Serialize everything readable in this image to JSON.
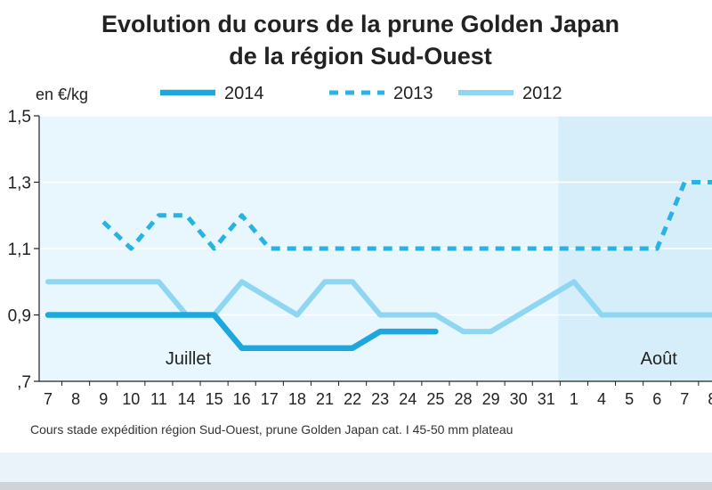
{
  "chart_data": {
    "type": "line",
    "title": "Evolution du cours de la prune Golden Japan",
    "subtitle": "de la région Sud-Ouest",
    "ylabel": "en €/kg",
    "caption": "Cours stade expédition région Sud-Ouest, prune Golden Japan cat. I 45-50 mm plateau",
    "ylim": [
      0.7,
      1.5
    ],
    "y_ticks": [
      ",7",
      "0,9",
      "1,1",
      "1,3",
      "1,5"
    ],
    "grid": "horizontal",
    "legend_position": "top",
    "month_labels": [
      {
        "label": "Juillet",
        "at_index": 5
      },
      {
        "label": "Août",
        "at_index": 22
      }
    ],
    "x": [
      "7",
      "8",
      "9",
      "10",
      "11",
      "14",
      "15",
      "16",
      "17",
      "18",
      "21",
      "22",
      "23",
      "24",
      "25",
      "28",
      "29",
      "30",
      "31",
      "1",
      "4",
      "5",
      "6",
      "7",
      "8"
    ],
    "series": [
      {
        "name": "2014",
        "style": "solid-thick",
        "color": "#1da7dc",
        "values": [
          0.9,
          0.9,
          0.9,
          0.9,
          0.9,
          0.9,
          0.9,
          0.8,
          0.8,
          0.8,
          0.8,
          0.8,
          0.85,
          0.85,
          0.85,
          null,
          null,
          null,
          null,
          null,
          null,
          null,
          null,
          null,
          null
        ]
      },
      {
        "name": "2013",
        "style": "dashed",
        "color": "#27b3e3",
        "values": [
          null,
          null,
          1.18,
          1.1,
          1.2,
          1.2,
          1.1,
          1.2,
          1.1,
          1.1,
          1.1,
          1.1,
          1.1,
          1.1,
          1.1,
          1.1,
          1.1,
          1.1,
          1.1,
          1.1,
          1.1,
          1.1,
          1.1,
          1.3,
          1.3
        ]
      },
      {
        "name": "2012",
        "style": "solid-light",
        "color": "#8fd6f3",
        "values": [
          1.0,
          1.0,
          1.0,
          1.0,
          1.0,
          0.9,
          0.9,
          1.0,
          0.95,
          0.9,
          1.0,
          1.0,
          0.9,
          0.9,
          0.9,
          0.85,
          0.85,
          0.9,
          0.95,
          1.0,
          0.9,
          0.9,
          0.9,
          0.9,
          0.9
        ]
      }
    ]
  }
}
